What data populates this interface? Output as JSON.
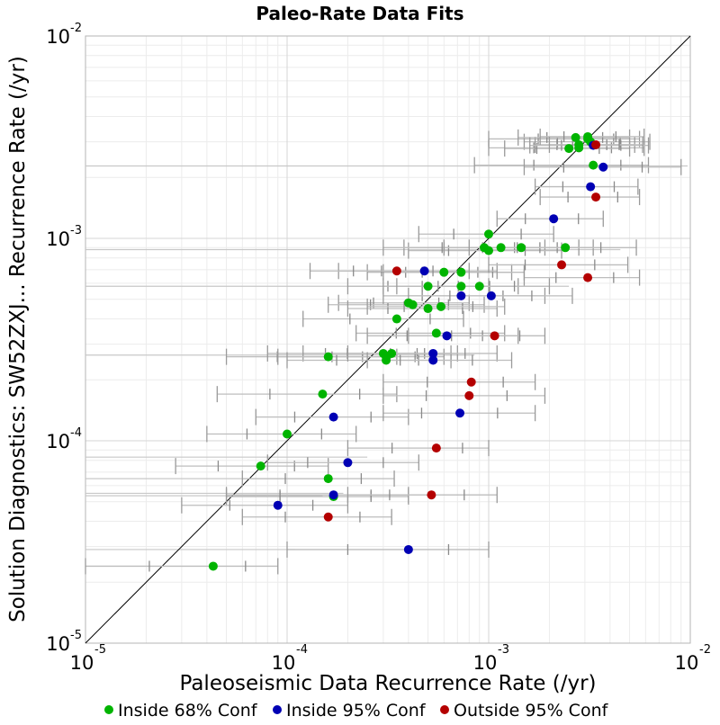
{
  "chart_data": {
    "type": "scatter",
    "title": "Paleo-Rate Data Fits",
    "xlabel": "Paleoseismic Data Recurrence Rate (/yr)",
    "ylabel": "Solution Diagnostics: SW52ZXJ... Recurrence Rate (/yr)",
    "x_scale": "log",
    "y_scale": "log",
    "xlim": [
      1e-05,
      0.01
    ],
    "ylim": [
      1e-05,
      0.01
    ],
    "x_ticks": [
      {
        "base": "10",
        "exp": "-5",
        "value": 1e-05
      },
      {
        "base": "10",
        "exp": "-4",
        "value": 0.0001
      },
      {
        "base": "10",
        "exp": "-3",
        "value": 0.001
      },
      {
        "base": "10",
        "exp": "-2",
        "value": 0.01
      }
    ],
    "y_ticks": [
      {
        "base": "10",
        "exp": "-5",
        "value": 1e-05
      },
      {
        "base": "10",
        "exp": "-4",
        "value": 0.0001
      },
      {
        "base": "10",
        "exp": "-3",
        "value": 0.001
      },
      {
        "base": "10",
        "exp": "-2",
        "value": 0.01
      }
    ],
    "grid": true,
    "reference_line": "y = x",
    "legend_position": "bottom",
    "series": [
      {
        "name": "Inside 68% Conf",
        "color": "#00b400",
        "points": [
          {
            "x": 0.0031,
            "y": 0.0031,
            "xlo": 0.001,
            "xhi": 0.0056
          },
          {
            "x": 0.0028,
            "y": 0.0028,
            "xlo": 0.001,
            "xhi": 0.0059
          },
          {
            "x": 0.0032,
            "y": 0.003,
            "xlo": 0.0015,
            "xhi": 0.0063
          },
          {
            "x": 0.0025,
            "y": 0.00278,
            "xlo": 0.0012,
            "xhi": 0.005
          },
          {
            "x": 0.0028,
            "y": 0.0029,
            "xlo": 0.0017,
            "xhi": 0.0053
          },
          {
            "x": 0.0033,
            "y": 0.0023,
            "xlo": 0.00085,
            "xhi": 0.0062
          },
          {
            "x": 0.0027,
            "y": 0.00315,
            "xlo": 0.0014,
            "xhi": 0.005
          },
          {
            "x": 0.0031,
            "y": 0.00318,
            "xlo": 0.0018,
            "xhi": 0.0059
          },
          {
            "x": 0.001,
            "y": 0.00105,
            "xlo": 0.00045,
            "xhi": 0.0021
          },
          {
            "x": 0.00095,
            "y": 0.0009,
            "xlo": 0.00038,
            "xhi": 0.0019
          },
          {
            "x": 0.001,
            "y": 0.00087,
            "xlo": 0.0004,
            "xhi": 0.0023
          },
          {
            "x": 0.00115,
            "y": 0.0009,
            "xlo": 0.0003,
            "xhi": 0.0028
          },
          {
            "x": 0.00145,
            "y": 0.0009,
            "xlo": 0.0006,
            "xhi": 0.0033
          },
          {
            "x": 0.0024,
            "y": 0.0009,
            "xlo": 0.0008,
            "xhi": 0.0054
          },
          {
            "x": 0.0006,
            "y": 0.00068,
            "xlo": 0.00025,
            "xhi": 0.0013
          },
          {
            "x": 0.00073,
            "y": 0.00068,
            "xlo": 0.0003,
            "xhi": 0.0015
          },
          {
            "x": 0.0005,
            "y": 0.00058,
            "xlo": 0.0002,
            "xhi": 0.001
          },
          {
            "x": 0.00073,
            "y": 0.00058,
            "xlo": 0.0003,
            "xhi": 0.0014
          },
          {
            "x": 0.0009,
            "y": 0.00058,
            "xlo": 0.00035,
            "xhi": 0.002
          },
          {
            "x": 0.0004,
            "y": 0.00048,
            "xlo": 0.00018,
            "xhi": 0.0008
          },
          {
            "x": 0.00042,
            "y": 0.00047,
            "xlo": 0.00016,
            "xhi": 0.00095
          },
          {
            "x": 0.0005,
            "y": 0.00045,
            "xlo": 0.0002,
            "xhi": 0.0011
          },
          {
            "x": 0.00058,
            "y": 0.00046,
            "xlo": 0.00025,
            "xhi": 0.0012
          },
          {
            "x": 0.00035,
            "y": 0.0004,
            "xlo": 0.00012,
            "xhi": 0.00075
          },
          {
            "x": 0.00055,
            "y": 0.00034,
            "xlo": 0.00022,
            "xhi": 0.0012
          },
          {
            "x": 0.00016,
            "y": 0.00026,
            "xlo": 5e-05,
            "xhi": 0.00035
          },
          {
            "x": 0.0003,
            "y": 0.00027,
            "xlo": 8e-05,
            "xhi": 0.00065
          },
          {
            "x": 0.00033,
            "y": 0.00027,
            "xlo": 0.00012,
            "xhi": 0.0007
          },
          {
            "x": 0.00031,
            "y": 0.00026,
            "xlo": 9e-05,
            "xhi": 0.0006
          },
          {
            "x": 0.00031,
            "y": 0.00025,
            "xlo": 0.0001,
            "xhi": 0.00065
          },
          {
            "x": 0.00015,
            "y": 0.00017,
            "xlo": 4.5e-05,
            "xhi": 0.00035
          },
          {
            "x": 0.0001,
            "y": 0.000108,
            "xlo": 4e-05,
            "xhi": 0.00022
          },
          {
            "x": 7.4e-05,
            "y": 7.5e-05,
            "xlo": 2.8e-05,
            "xhi": 0.00016
          },
          {
            "x": 0.00016,
            "y": 6.5e-05,
            "xlo": 6e-05,
            "xhi": 0.00034
          },
          {
            "x": 0.00017,
            "y": 5.3e-05,
            "xlo": 5e-05,
            "xhi": 0.0004
          },
          {
            "x": 4.3e-05,
            "y": 2.4e-05,
            "xlo": 1e-05,
            "xhi": 9e-05
          }
        ]
      },
      {
        "name": "Inside 95% Conf",
        "color": "#0000b4",
        "points": [
          {
            "x": 0.0033,
            "y": 0.00288,
            "xlo": 0.0016,
            "xhi": 0.0062
          },
          {
            "x": 0.0037,
            "y": 0.00225,
            "xlo": 0.0015,
            "xhi": 0.009
          },
          {
            "x": 0.0032,
            "y": 0.0018,
            "xlo": 0.0017,
            "xhi": 0.0055
          },
          {
            "x": 0.0021,
            "y": 0.00125,
            "xlo": 0.0011,
            "xhi": 0.0037
          },
          {
            "x": 0.00048,
            "y": 0.00069,
            "xlo": 0.00018,
            "xhi": 0.0011
          },
          {
            "x": 0.00073,
            "y": 0.00052,
            "xlo": 0.0003,
            "xhi": 0.0019
          },
          {
            "x": 0.00103,
            "y": 0.00052,
            "xlo": 0.0004,
            "xhi": 0.0026
          },
          {
            "x": 0.00062,
            "y": 0.00033,
            "xlo": 0.00025,
            "xhi": 0.0014
          },
          {
            "x": 0.00053,
            "y": 0.00027,
            "xlo": 0.0002,
            "xhi": 0.0011
          },
          {
            "x": 0.00053,
            "y": 0.00025,
            "xlo": 0.00025,
            "xhi": 0.0013
          },
          {
            "x": 0.00017,
            "y": 0.000131,
            "xlo": 7e-05,
            "xhi": 0.0004
          },
          {
            "x": 0.00072,
            "y": 0.000137,
            "xlo": 0.0003,
            "xhi": 0.0017
          },
          {
            "x": 0.0002,
            "y": 7.8e-05,
            "xlo": 8e-05,
            "xhi": 0.00045
          },
          {
            "x": 0.00017,
            "y": 5.4e-05,
            "xlo": 5e-05,
            "xhi": 0.0004
          },
          {
            "x": 9e-05,
            "y": 4.8e-05,
            "xlo": 3e-05,
            "xhi": 0.0002
          },
          {
            "x": 0.0004,
            "y": 2.9e-05,
            "xlo": 0.0001,
            "xhi": 0.001
          }
        ]
      },
      {
        "name": "Outside 95% Conf",
        "color": "#b40000",
        "points": [
          {
            "x": 0.0034,
            "y": 0.0029,
            "xlo": 0.002,
            "xhi": 0.0058
          },
          {
            "x": 0.0034,
            "y": 0.0016,
            "xlo": 0.0018,
            "xhi": 0.0056
          },
          {
            "x": 0.0023,
            "y": 0.00074,
            "xlo": 0.001,
            "xhi": 0.0049
          },
          {
            "x": 0.0031,
            "y": 0.00064,
            "xlo": 0.0015,
            "xhi": 0.0056
          },
          {
            "x": 0.00035,
            "y": 0.00069,
            "xlo": 0.00013,
            "xhi": 0.0008
          },
          {
            "x": 0.00107,
            "y": 0.00033,
            "xlo": 0.0004,
            "xhi": 0.0019
          },
          {
            "x": 0.00082,
            "y": 0.000195,
            "xlo": 0.0003,
            "xhi": 0.0017
          },
          {
            "x": 0.0008,
            "y": 0.000167,
            "xlo": 0.0003,
            "xhi": 0.0019
          },
          {
            "x": 0.00055,
            "y": 9.2e-05,
            "xlo": 0.0002,
            "xhi": 0.001
          },
          {
            "x": 0.00052,
            "y": 5.4e-05,
            "xlo": 0.0002,
            "xhi": 0.0011
          },
          {
            "x": 0.00016,
            "y": 4.2e-05,
            "xlo": 6e-05,
            "xhi": 0.00033
          }
        ]
      }
    ],
    "background_error_bars": [
      {
        "y": 0.00228,
        "xlo": 1e-05,
        "xhi": 0.0097
      },
      {
        "y": 0.00088,
        "xlo": 1e-05,
        "xhi": 0.0045
      },
      {
        "y": 0.00058,
        "xlo": 1e-05,
        "xhi": 0.0025
      },
      {
        "y": 0.000265,
        "xlo": 1e-05,
        "xhi": 0.00085
      },
      {
        "y": 8.3e-05,
        "xlo": 1e-05,
        "xhi": 0.00025
      },
      {
        "y": 6.5e-05,
        "xlo": 1e-05,
        "xhi": 0.0002
      },
      {
        "y": 5.5e-05,
        "xlo": 1e-05,
        "xhi": 0.00019
      },
      {
        "y": 5.35e-05,
        "xlo": 1e-05,
        "xhi": 0.00015
      },
      {
        "y": 2.9e-05,
        "xlo": 1e-05,
        "xhi": 0.00011
      }
    ]
  }
}
